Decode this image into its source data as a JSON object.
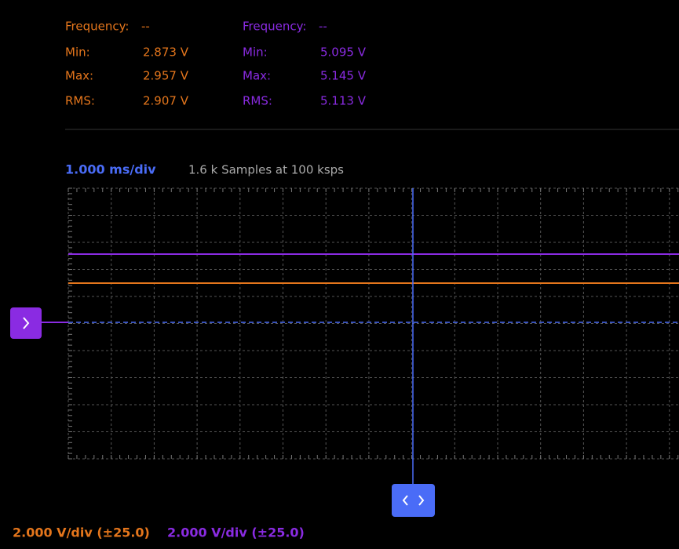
{
  "channels": [
    {
      "color": "#e5761c",
      "frequency_label": "Frequency:",
      "frequency": "--",
      "stats": [
        {
          "label": "Min:",
          "value": "2.873 V"
        },
        {
          "label": "Max:",
          "value": "2.957 V"
        },
        {
          "label": "RMS:",
          "value": "2.907 V"
        }
      ],
      "scale": "2.000 V/div (±25.0)"
    },
    {
      "color": "#8a2be2",
      "frequency_label": "Frequency:",
      "frequency": "--",
      "stats": [
        {
          "label": "Min:",
          "value": "5.095 V"
        },
        {
          "label": "Max:",
          "value": "5.145 V"
        },
        {
          "label": "RMS:",
          "value": "5.113 V"
        }
      ],
      "scale": "2.000 V/div (±25.0)"
    }
  ],
  "timebase": "1.000 ms/div",
  "sample_info": "1.6 k Samples at 100 ksps"
}
